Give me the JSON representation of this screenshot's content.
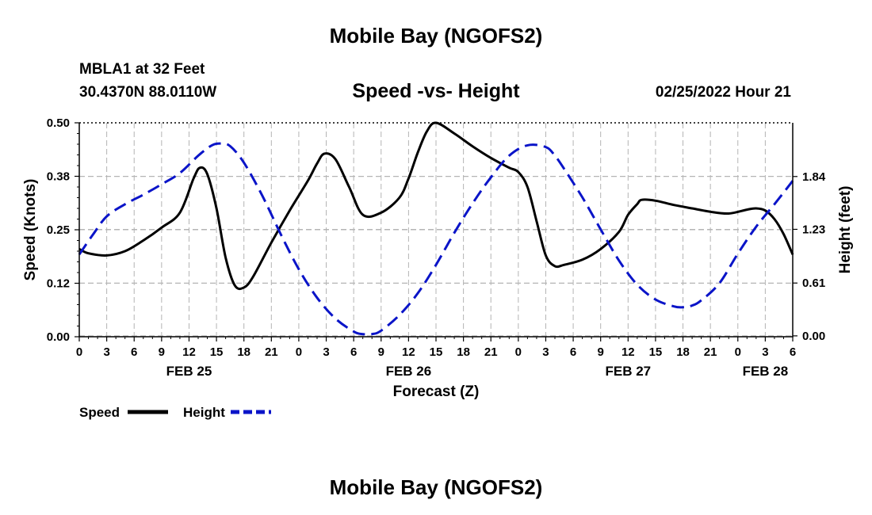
{
  "header": {
    "title": "Mobile Bay (NGOFS2)",
    "station": "MBLA1 at 32 Feet",
    "coords": "30.4370N  88.0110W",
    "subtitle": "Speed -vs- Height",
    "forecast_time": "02/25/2022 Hour 21"
  },
  "footer": {
    "title": "Mobile Bay (NGOFS2)"
  },
  "chart_data": {
    "type": "line",
    "title": "Speed -vs- Height",
    "xlabel": "Forecast (Z)",
    "ylabel": "Speed (Knots)",
    "y2label": "Height (feet)",
    "x_unit": "forecast hours from FEB 25 00Z",
    "xlim": [
      0,
      78
    ],
    "ylim": [
      0,
      0.5
    ],
    "y2lim": [
      -0.01,
      2.46
    ],
    "grid": true,
    "legend_position": "bottom-left",
    "x_ticks": [
      {
        "h": 0,
        "label": "0"
      },
      {
        "h": 3,
        "label": "3"
      },
      {
        "h": 6,
        "label": "6"
      },
      {
        "h": 9,
        "label": "9"
      },
      {
        "h": 12,
        "label": "12"
      },
      {
        "h": 15,
        "label": "15"
      },
      {
        "h": 18,
        "label": "18"
      },
      {
        "h": 21,
        "label": "21"
      },
      {
        "h": 24,
        "label": "0"
      },
      {
        "h": 27,
        "label": "3"
      },
      {
        "h": 30,
        "label": "6"
      },
      {
        "h": 33,
        "label": "9"
      },
      {
        "h": 36,
        "label": "12"
      },
      {
        "h": 39,
        "label": "15"
      },
      {
        "h": 42,
        "label": "18"
      },
      {
        "h": 45,
        "label": "21"
      },
      {
        "h": 48,
        "label": "0"
      },
      {
        "h": 51,
        "label": "3"
      },
      {
        "h": 54,
        "label": "6"
      },
      {
        "h": 57,
        "label": "9"
      },
      {
        "h": 60,
        "label": "12"
      },
      {
        "h": 63,
        "label": "15"
      },
      {
        "h": 66,
        "label": "18"
      },
      {
        "h": 69,
        "label": "21"
      },
      {
        "h": 72,
        "label": "0"
      },
      {
        "h": 75,
        "label": "3"
      },
      {
        "h": 78,
        "label": "6"
      }
    ],
    "date_labels": [
      {
        "h": 12,
        "label": "FEB 25"
      },
      {
        "h": 36,
        "label": "FEB 26"
      },
      {
        "h": 60,
        "label": "FEB 27"
      },
      {
        "h": 75,
        "label": "FEB 28"
      }
    ],
    "y_ticks": [
      {
        "v": 0.0,
        "label": "0.00"
      },
      {
        "v": 0.125,
        "label": "0.12"
      },
      {
        "v": 0.25,
        "label": "0.25"
      },
      {
        "v": 0.375,
        "label": "0.38"
      },
      {
        "v": 0.5,
        "label": "0.50"
      }
    ],
    "y2_ticks": [
      {
        "v": 0.0,
        "label": "0.00"
      },
      {
        "v": 0.61,
        "label": "0.61"
      },
      {
        "v": 1.23,
        "label": "1.23"
      },
      {
        "v": 1.84,
        "label": "1.84"
      }
    ],
    "series": [
      {
        "name": "Speed",
        "axis": "left",
        "color": "#000000",
        "dash": "solid",
        "x": [
          0,
          1,
          3,
          5,
          7,
          9,
          11,
          12.5,
          13.2,
          14,
          15,
          16,
          17,
          18,
          19,
          21,
          23,
          25,
          26,
          26.8,
          28,
          29.5,
          31,
          33,
          35,
          36,
          37,
          38,
          39,
          41,
          43,
          45,
          47,
          48,
          49,
          50,
          51,
          52,
          53,
          55,
          57,
          59,
          60,
          61,
          61.5,
          63,
          65,
          67,
          69,
          71,
          73,
          74,
          75,
          76,
          77,
          78
        ],
        "y": [
          0.205,
          0.195,
          0.19,
          0.2,
          0.225,
          0.255,
          0.29,
          0.37,
          0.395,
          0.38,
          0.3,
          0.185,
          0.12,
          0.115,
          0.14,
          0.22,
          0.295,
          0.365,
          0.405,
          0.428,
          0.415,
          0.35,
          0.285,
          0.29,
          0.325,
          0.37,
          0.43,
          0.48,
          0.5,
          0.475,
          0.445,
          0.418,
          0.395,
          0.385,
          0.35,
          0.27,
          0.19,
          0.165,
          0.168,
          0.18,
          0.205,
          0.245,
          0.285,
          0.31,
          0.32,
          0.318,
          0.308,
          0.3,
          0.292,
          0.288,
          0.297,
          0.3,
          0.295,
          0.275,
          0.24,
          0.192
        ]
      },
      {
        "name": "Height",
        "axis": "right",
        "color": "#0a14c8",
        "dash": "dashed",
        "x": [
          0,
          1.5,
          3,
          5,
          7,
          9,
          11,
          13,
          14.5,
          15.5,
          16.5,
          18,
          20,
          22,
          24,
          26,
          28,
          30,
          31,
          32,
          33,
          35,
          37,
          39,
          41,
          43,
          45,
          47,
          49,
          51,
          52,
          53,
          55,
          57,
          59,
          61,
          63,
          65,
          66,
          67,
          68,
          70,
          72,
          74,
          76,
          78
        ],
        "y": [
          0.94,
          1.17,
          1.38,
          1.52,
          1.63,
          1.75,
          1.88,
          2.08,
          2.2,
          2.22,
          2.19,
          2.0,
          1.62,
          1.18,
          0.77,
          0.44,
          0.2,
          0.05,
          0.02,
          0.02,
          0.06,
          0.24,
          0.49,
          0.82,
          1.19,
          1.53,
          1.83,
          2.08,
          2.2,
          2.18,
          2.08,
          1.93,
          1.6,
          1.23,
          0.87,
          0.59,
          0.42,
          0.34,
          0.33,
          0.35,
          0.41,
          0.61,
          0.95,
          1.26,
          1.52,
          1.79
        ]
      }
    ]
  }
}
